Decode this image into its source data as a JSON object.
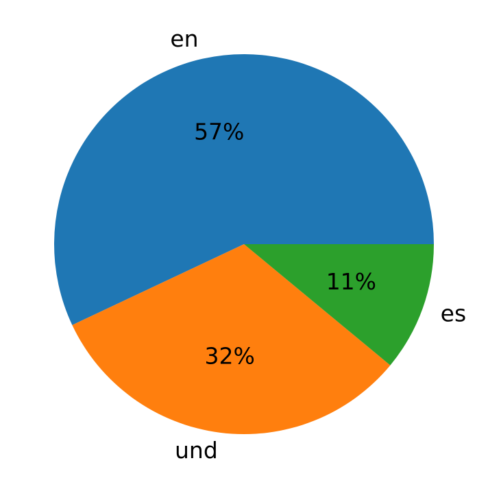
{
  "chart_data": {
    "type": "pie",
    "categories": [
      "en",
      "und",
      "es"
    ],
    "values": [
      57,
      32,
      11
    ],
    "value_labels": [
      "57%",
      "32%",
      "11%"
    ],
    "colors": [
      "#1f77b4",
      "#ff7f0e",
      "#2ca02c"
    ]
  }
}
